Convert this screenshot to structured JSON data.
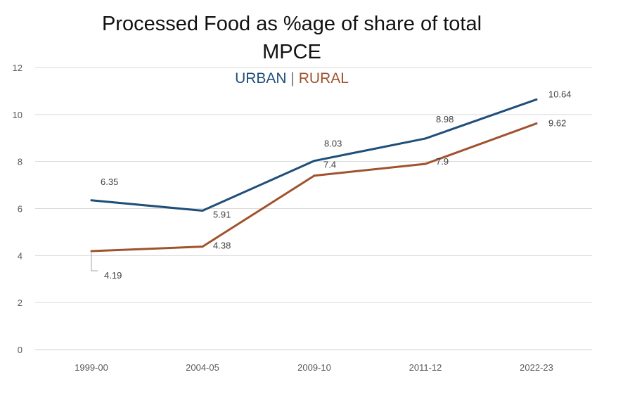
{
  "chart_data": {
    "type": "line",
    "title_line1": "Processed Food as %age of share of total",
    "title_line2": "MPCE",
    "legend": {
      "urban": "URBAN",
      "separator": "|",
      "rural": "RURAL"
    },
    "categories": [
      "1999-00",
      "2004-05",
      "2009-10",
      "2011-12",
      "2022-23"
    ],
    "ylim": [
      0,
      12
    ],
    "yticks": [
      0,
      2,
      4,
      6,
      8,
      10,
      12
    ],
    "grid": true,
    "series": [
      {
        "name": "URBAN",
        "color": "#1f4e79",
        "values": [
          6.35,
          5.91,
          8.03,
          8.98,
          10.64
        ]
      },
      {
        "name": "RURAL",
        "color": "#a0522d",
        "values": [
          4.19,
          4.38,
          7.4,
          7.9,
          9.62
        ]
      }
    ]
  }
}
